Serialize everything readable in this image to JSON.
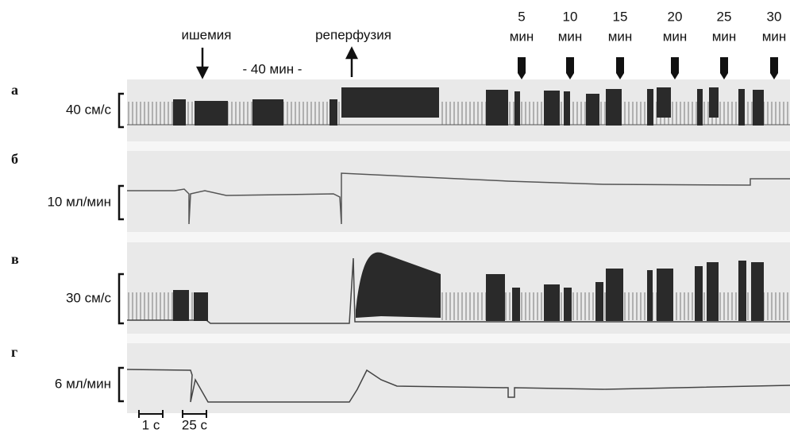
{
  "events": [
    {
      "label": "ишемия"
    },
    {
      "label": "- 40 мин -"
    },
    {
      "label": "реперфузия"
    }
  ],
  "time_marks": [
    {
      "value": "5",
      "unit": "мин"
    },
    {
      "value": "10",
      "unit": "мин"
    },
    {
      "value": "15",
      "unit": "мин"
    },
    {
      "value": "20",
      "unit": "мин"
    },
    {
      "value": "25",
      "unit": "мин"
    },
    {
      "value": "30",
      "unit": "мин"
    }
  ],
  "panels": [
    {
      "letter": "а",
      "scale": "40 см/с"
    },
    {
      "letter": "б",
      "scale": "10 мл/мин"
    },
    {
      "letter": "в",
      "scale": "30 см/с"
    },
    {
      "letter": "г",
      "scale": "6 мл/мин"
    }
  ],
  "scale_bars": [
    "1 с",
    "25 с"
  ]
}
